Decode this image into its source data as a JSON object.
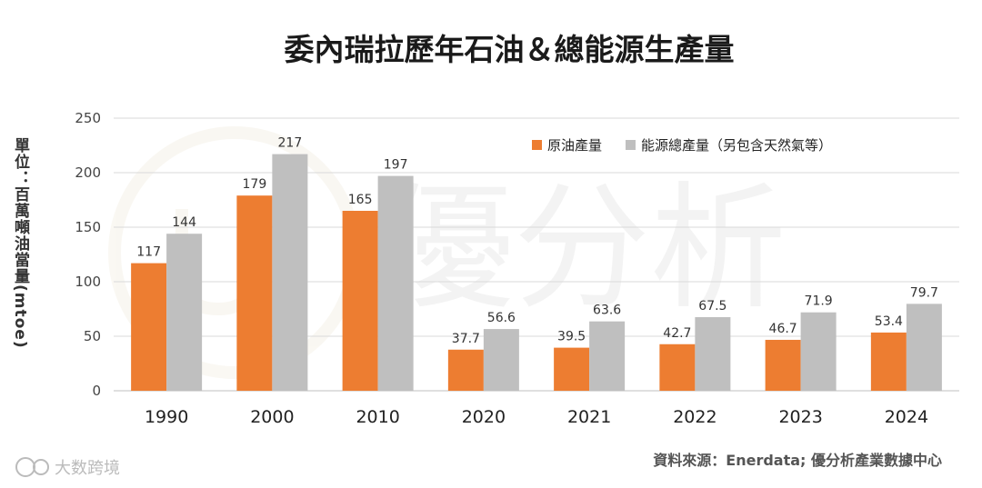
{
  "chart_data": {
    "type": "bar",
    "title": "委內瑞拉歷年石油＆總能源生產量",
    "ylabel": "單位：百萬噸油當量(mtoe)",
    "xlabel": "",
    "categories": [
      "1990",
      "2000",
      "2010",
      "2020",
      "2021",
      "2022",
      "2023",
      "2024"
    ],
    "series": [
      {
        "name": "原油產量",
        "values": [
          117,
          179,
          165,
          37.7,
          39.5,
          42.7,
          46.7,
          53.4
        ],
        "color": "#ED7D31"
      },
      {
        "name": "能源總產量（另包含天然氣等）",
        "values": [
          144,
          217,
          197,
          56.6,
          63.6,
          67.5,
          71.9,
          79.7
        ],
        "color": "#BFBFBF"
      }
    ],
    "data_labels": [
      [
        "117",
        "179",
        "165",
        "37.7",
        "39.5",
        "42.7",
        "46.7",
        "53.4"
      ],
      [
        "144",
        "217",
        "197",
        "56.6",
        "63.6",
        "67.5",
        "71.9",
        "79.7"
      ]
    ],
    "yticks": [
      "0",
      "50",
      "100",
      "150",
      "200",
      "250"
    ],
    "ylim": [
      0,
      250
    ],
    "grid": true,
    "legend_position": "top-right"
  },
  "source_note": "資料來源：Enerdata; 優分析產業數據中心",
  "watermark_text": "優分析",
  "footer_logo_text": "大数跨境"
}
